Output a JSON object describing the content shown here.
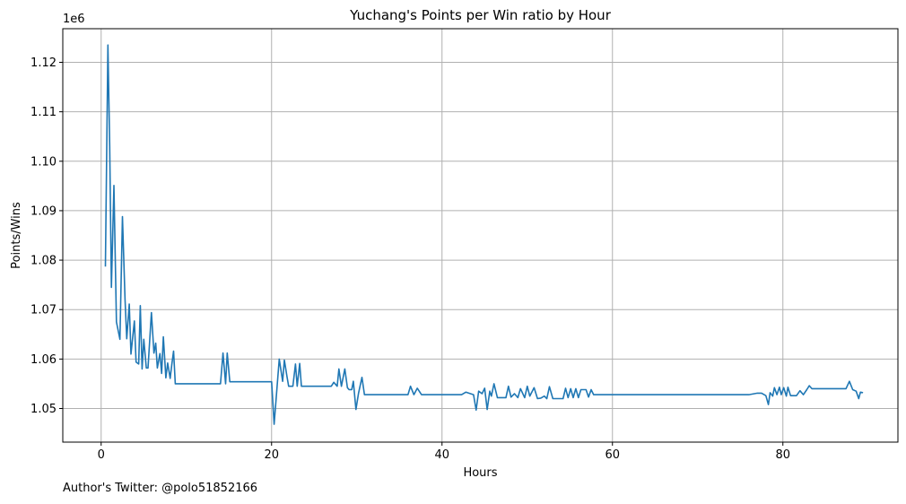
{
  "footnote": "Author's Twitter: @polo51852166",
  "colors": {
    "line": "#1f77b4",
    "grid": "#b0b0b0",
    "axis": "#000000"
  },
  "chart_data": {
    "type": "line",
    "title": "Yuchang's Points per Win ratio by Hour",
    "xlabel": "Hours",
    "ylabel": "Points/Wins",
    "y_offset_label": "1e6",
    "xlim": [
      -4.5,
      93.5
    ],
    "ylim": [
      1.0432,
      1.1268
    ],
    "xticks": [
      0,
      20,
      40,
      60,
      80
    ],
    "xtick_labels": [
      "0",
      "20",
      "40",
      "60",
      "80"
    ],
    "yticks": [
      1.05,
      1.06,
      1.07,
      1.08,
      1.09,
      1.1,
      1.11,
      1.12
    ],
    "ytick_labels": [
      "1.05",
      "1.06",
      "1.07",
      "1.08",
      "1.09",
      "1.10",
      "1.11",
      "1.12"
    ],
    "grid": true,
    "series": [
      {
        "x": [
          0.5,
          0.8,
          1.0,
          1.2,
          1.5,
          1.8,
          2.2,
          2.5,
          2.8,
          3.0,
          3.3,
          3.5,
          3.9,
          4.1,
          4.4,
          4.6,
          4.8,
          5.0,
          5.3,
          5.5,
          5.9,
          6.2,
          6.4,
          6.6,
          6.9,
          7.1,
          7.3,
          7.6,
          7.8,
          8.1,
          8.3,
          8.5,
          8.7,
          9.0,
          14.0,
          14.3,
          14.6,
          14.8,
          15.1,
          20.0,
          20.3,
          20.9,
          21.3,
          21.5,
          21.8,
          22.0,
          22.3,
          22.5,
          22.8,
          23.0,
          23.3,
          23.5,
          23.8,
          27.0,
          27.3,
          27.7,
          27.9,
          28.2,
          28.6,
          28.9,
          29.1,
          29.4,
          29.6,
          29.9,
          30.2,
          30.6,
          30.9,
          31.1,
          36.0,
          36.3,
          36.7,
          37.1,
          37.6,
          42.3,
          42.8,
          43.7,
          44.0,
          44.3,
          44.7,
          45.0,
          45.3,
          45.6,
          45.8,
          46.1,
          46.5,
          47.5,
          47.8,
          48.1,
          48.5,
          48.9,
          49.2,
          49.7,
          50.0,
          50.3,
          50.8,
          51.2,
          51.6,
          52.0,
          52.3,
          52.6,
          53.0,
          54.2,
          54.5,
          54.8,
          55.1,
          55.4,
          55.7,
          56.0,
          56.3,
          56.6,
          56.9,
          57.2,
          57.5,
          57.8,
          58.2,
          76.0,
          77.0,
          77.5,
          78.0,
          78.3,
          78.5,
          78.8,
          79.0,
          79.3,
          79.6,
          79.8,
          80.1,
          80.4,
          80.6,
          80.9,
          81.2,
          81.6,
          82.0,
          82.4,
          82.8,
          83.1,
          83.4,
          84.0,
          86.0,
          87.4,
          87.8,
          88.2,
          88.6,
          88.9,
          89.1,
          89.4
        ],
        "y": [
          1.0787,
          1.1235,
          1.103,
          1.0745,
          1.0951,
          1.0675,
          1.064,
          1.0888,
          1.072,
          1.0641,
          1.0711,
          1.061,
          1.0677,
          1.0594,
          1.059,
          1.0708,
          1.058,
          1.064,
          1.0582,
          1.0582,
          1.0694,
          1.0612,
          1.0632,
          1.0582,
          1.0611,
          1.0571,
          1.0645,
          1.0562,
          1.0592,
          1.0561,
          1.059,
          1.0616,
          1.055,
          1.055,
          1.055,
          1.0612,
          1.055,
          1.0612,
          1.0554,
          1.0554,
          1.0468,
          1.06,
          1.0555,
          1.0598,
          1.0565,
          1.0545,
          1.0545,
          1.0545,
          1.059,
          1.0545,
          1.0591,
          1.0545,
          1.0545,
          1.0545,
          1.0553,
          1.0545,
          1.058,
          1.0545,
          1.058,
          1.0542,
          1.0538,
          1.0538,
          1.0555,
          1.0498,
          1.0531,
          1.0563,
          1.0528,
          1.0528,
          1.0528,
          1.0545,
          1.0528,
          1.0541,
          1.0528,
          1.0528,
          1.0533,
          1.0528,
          1.0497,
          1.0535,
          1.053,
          1.0541,
          1.0498,
          1.0535,
          1.0525,
          1.055,
          1.0522,
          1.0522,
          1.0545,
          1.0523,
          1.053,
          1.0522,
          1.054,
          1.0522,
          1.0545,
          1.0525,
          1.0542,
          1.052,
          1.0521,
          1.0525,
          1.052,
          1.0544,
          1.052,
          1.052,
          1.0541,
          1.0522,
          1.054,
          1.0522,
          1.054,
          1.0522,
          1.0538,
          1.0538,
          1.0538,
          1.0523,
          1.0538,
          1.0528,
          1.0528,
          1.0528,
          1.0531,
          1.0531,
          1.0526,
          1.0508,
          1.0532,
          1.0525,
          1.0542,
          1.0528,
          1.0543,
          1.0528,
          1.0542,
          1.0525,
          1.0543,
          1.0526,
          1.0526,
          1.0526,
          1.0536,
          1.0528,
          1.0538,
          1.0546,
          1.054,
          1.054,
          1.054,
          1.054,
          1.0555,
          1.0538,
          1.0535,
          1.052,
          1.0533,
          1.0532
        ]
      }
    ]
  }
}
